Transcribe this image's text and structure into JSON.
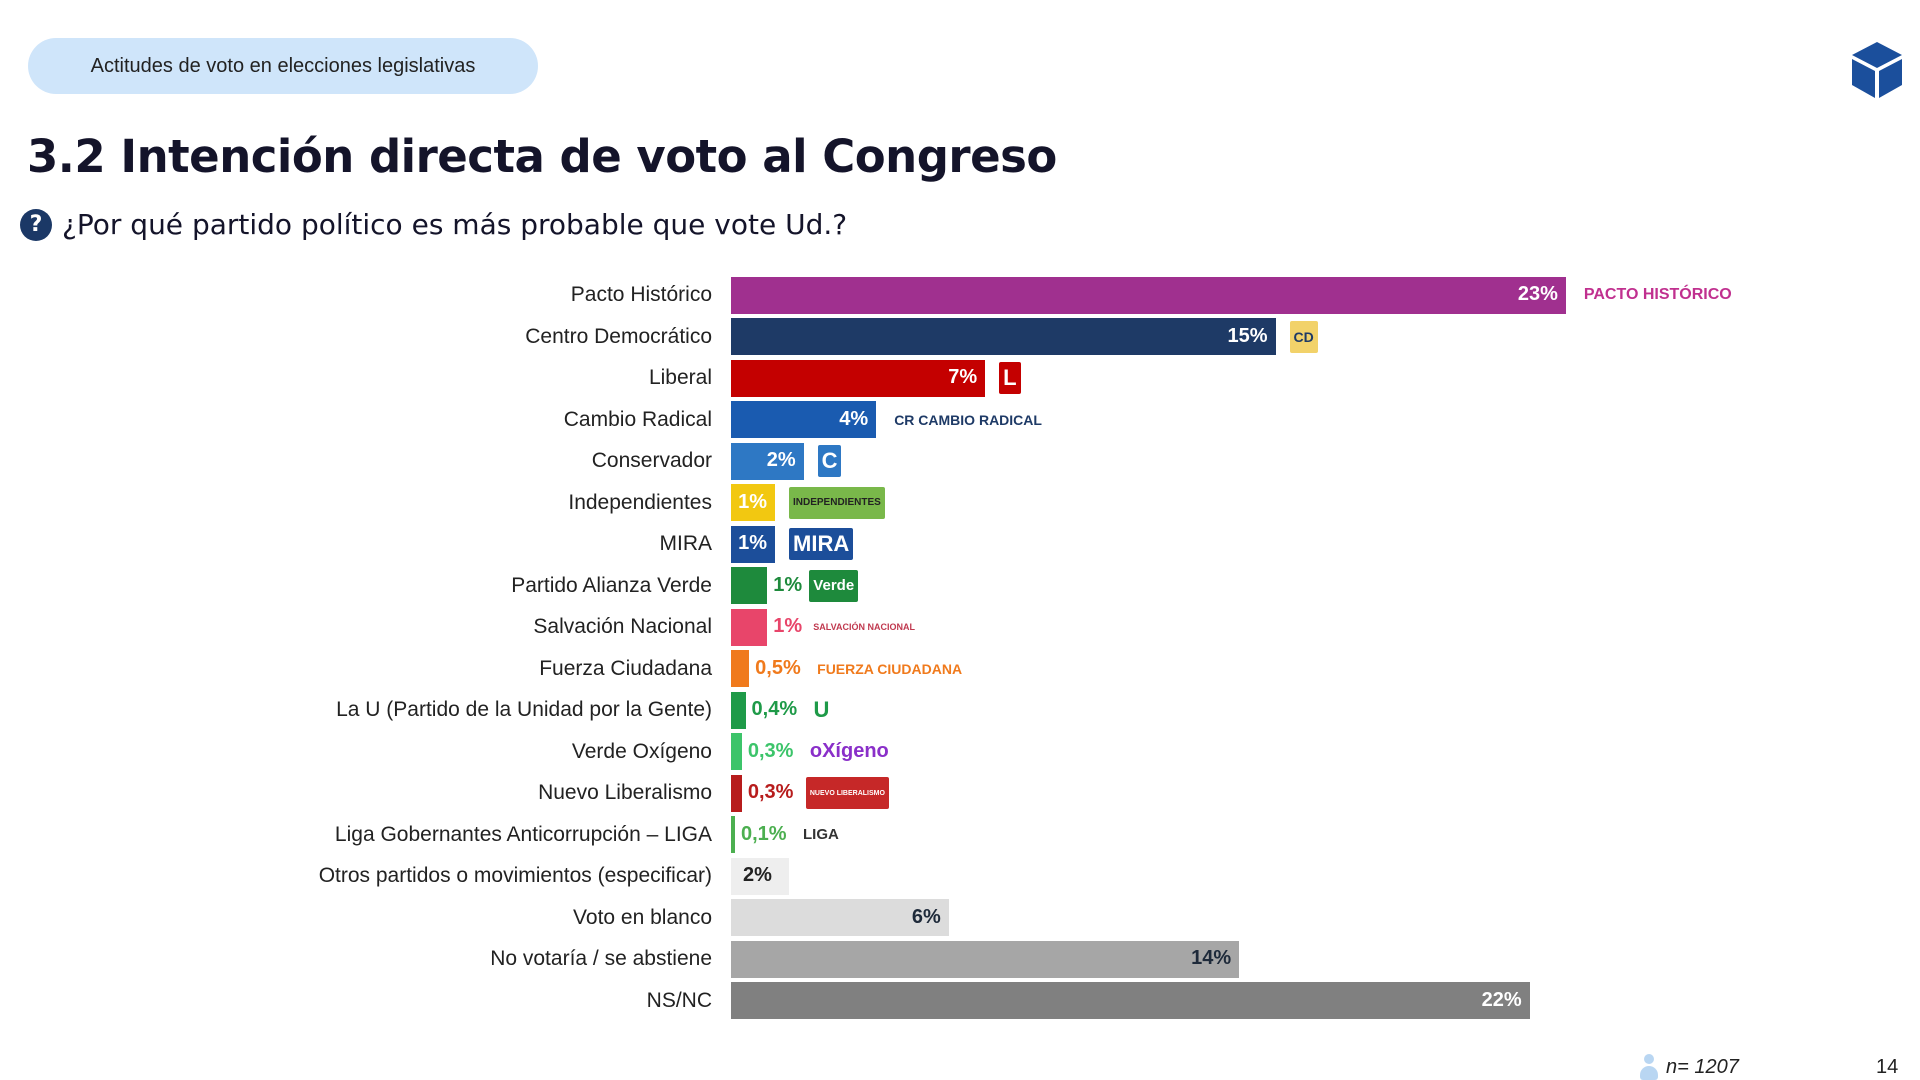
{
  "header": {
    "section_pill": "Actitudes de voto en elecciones legislativas",
    "title": "3.2 Intención directa de voto al Congreso",
    "question": "¿Por qué partido político es más probable que vote Ud.?",
    "question_icon": "question-circle-icon",
    "brand_icon": "cube-logo-icon",
    "brand_color": "#1b4f9c"
  },
  "chart_data": {
    "type": "bar",
    "orientation": "horizontal",
    "grid": false,
    "unit": "%",
    "categories": [
      "Pacto Histórico",
      "Centro Democrático",
      "Liberal",
      "Cambio Radical",
      "Conservador",
      "Independientes",
      "MIRA",
      "Partido Alianza Verde",
      "Salvación Nacional",
      "Fuerza Ciudadana",
      "La U (Partido de la Unidad por la Gente)",
      "Verde Oxígeno",
      "Nuevo Liberalismo",
      "Liga Gobernantes Anticorrupción – LIGA",
      "Otros partidos o movimientos (especificar)",
      "Voto en blanco",
      "No votaría / se abstiene",
      "NS/NC"
    ],
    "values": [
      23,
      15,
      7,
      4,
      2,
      1,
      1,
      1,
      1,
      0.5,
      0.4,
      0.3,
      0.3,
      0.1,
      2,
      6,
      14,
      22
    ],
    "labels": [
      "23%",
      "15%",
      "7%",
      "4%",
      "2%",
      "1%",
      "1%",
      "1%",
      "1%",
      "0,5%",
      "0,4%",
      "0,3%",
      "0,3%",
      "0,1%",
      "2%",
      "6%",
      "14%",
      "22%"
    ],
    "colors": [
      "#a0308f",
      "#1e3a66",
      "#c40000",
      "#1a5bb0",
      "#2e78c4",
      "#f2c811",
      "#1c4e9a",
      "#1e8a3c",
      "#e8456a",
      "#f07a1c",
      "#1e9a48",
      "#3cc46a",
      "#b71c1c",
      "#4caf50",
      "#eeeeee",
      "#dcdcdc",
      "#a6a6a6",
      "#808080"
    ],
    "logos": [
      "PACTO HISTÓRICO",
      "CD",
      "L",
      "CR CAMBIO RADICAL",
      "C",
      "INDEPENDIENTES",
      "MIRA",
      "Verde",
      "SALVACIÓN NACIONAL",
      "FUERZA CIUDADANA",
      "U",
      "oXígeno",
      "NUEVO LIBERALISMO",
      "LIGA",
      "",
      "",
      "",
      ""
    ]
  },
  "footer": {
    "sample": "n= 1207",
    "page": "14"
  }
}
